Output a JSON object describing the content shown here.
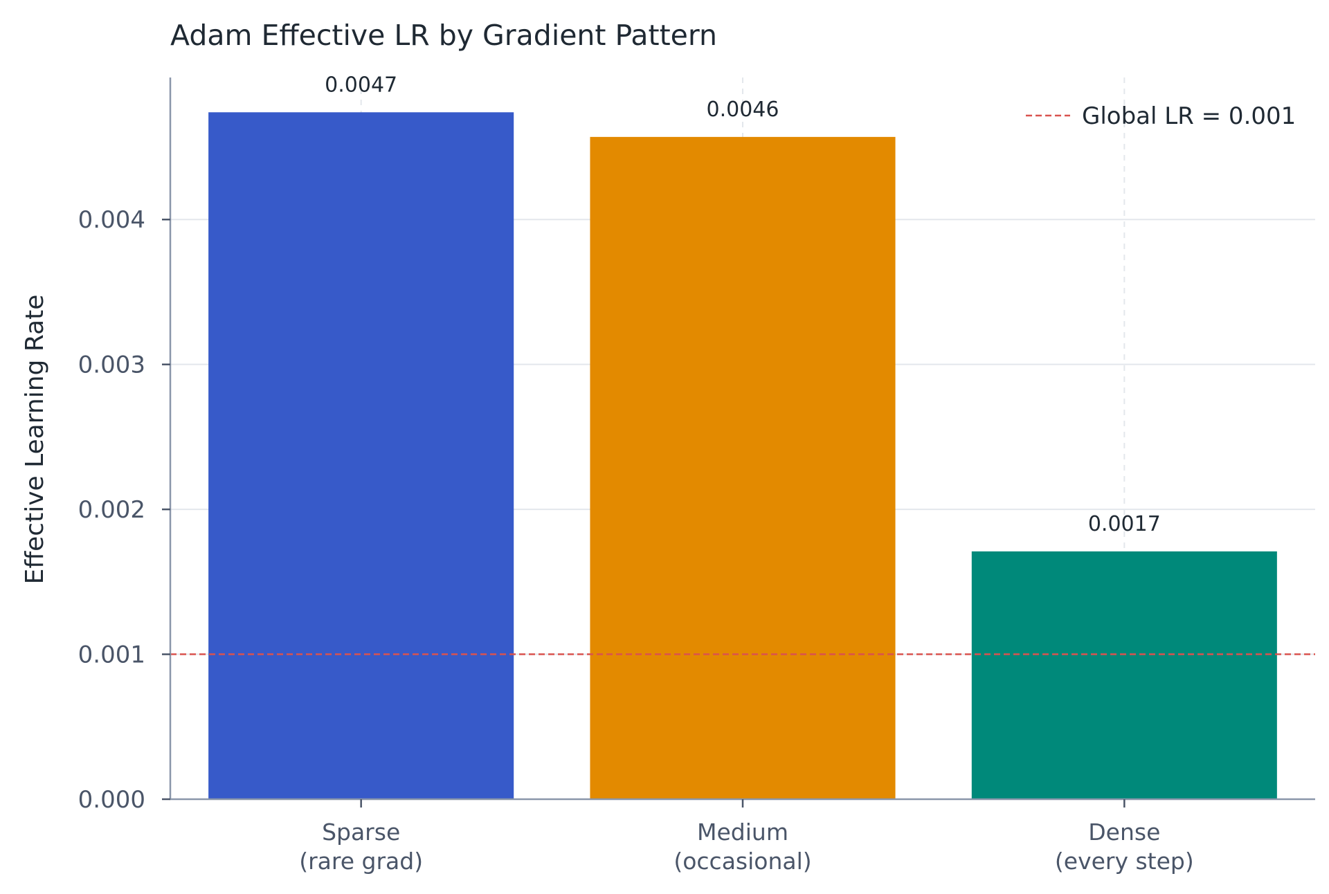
{
  "chart_data": {
    "type": "bar",
    "title": "Adam Effective LR by Gradient Pattern",
    "xlabel": "",
    "ylabel": "Effective Learning Rate",
    "categories": [
      [
        "Sparse",
        "(rare grad)"
      ],
      [
        "Medium",
        "(occasional)"
      ],
      [
        "Dense",
        "(every step)"
      ]
    ],
    "values": [
      0.00474,
      0.00457,
      0.00171
    ],
    "value_labels": [
      "0.0047",
      "0.0046",
      "0.0017"
    ],
    "colors": [
      "#375ac9",
      "#e38a00",
      "#00897a"
    ],
    "ylim": [
      0,
      0.00498
    ],
    "yticks": [
      0,
      0.001,
      0.002,
      0.003,
      0.004
    ],
    "ytick_labels": [
      "0.000",
      "0.001",
      "0.002",
      "0.003",
      "0.004"
    ],
    "grid": "horizontal",
    "reference_line": {
      "value": 0.001,
      "label": "Global LR = 0.001",
      "color": "#d9534f",
      "style": "dashed"
    },
    "legend": {
      "placement": "top-right",
      "entries": [
        "Global LR = 0.001"
      ]
    }
  }
}
